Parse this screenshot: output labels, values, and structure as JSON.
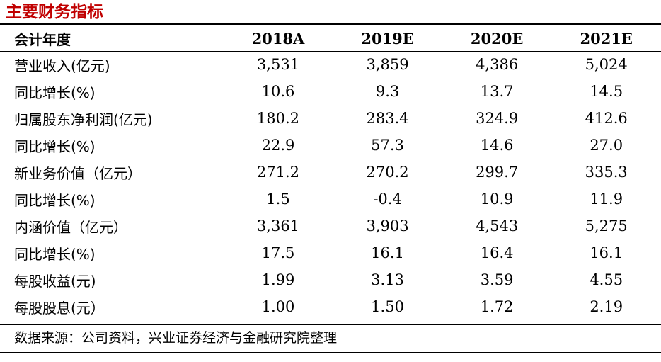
{
  "title": "主要财务指标",
  "header": {
    "label": "会计年度",
    "years": [
      "2018A",
      "2019E",
      "2020E",
      "2021E"
    ]
  },
  "rows": [
    {
      "label": "营业收入(亿元)",
      "values": [
        "3,531",
        "3,859",
        "4,386",
        "5,024"
      ]
    },
    {
      "label": "同比增长(%)",
      "values": [
        "10.6",
        "9.3",
        "13.7",
        "14.5"
      ]
    },
    {
      "label": "归属股东净利润(亿元)",
      "values": [
        "180.2",
        "283.4",
        "324.9",
        "412.6"
      ]
    },
    {
      "label": "同比增长(%)",
      "values": [
        "22.9",
        "57.3",
        "14.6",
        "27.0"
      ]
    },
    {
      "label": "新业务价值（亿元）",
      "values": [
        "271.2",
        "270.2",
        "299.7",
        "335.3"
      ]
    },
    {
      "label": "同比增长(%)",
      "values": [
        "1.5",
        "-0.4",
        "10.9",
        "11.9"
      ]
    },
    {
      "label": "内涵价值（亿元）",
      "values": [
        "3,361",
        "3,903",
        "4,543",
        "5,275"
      ]
    },
    {
      "label": "同比增长(%)",
      "values": [
        "17.5",
        "16.1",
        "16.4",
        "16.1"
      ]
    },
    {
      "label": "每股收益(元)",
      "values": [
        "1.99",
        "3.13",
        "3.59",
        "4.55"
      ]
    },
    {
      "label": "每股股息(元）",
      "values": [
        "1.00",
        "1.50",
        "1.72",
        "2.19"
      ]
    }
  ],
  "footnote": "数据来源：公司资料，兴业证券经济与金融研究院整理"
}
